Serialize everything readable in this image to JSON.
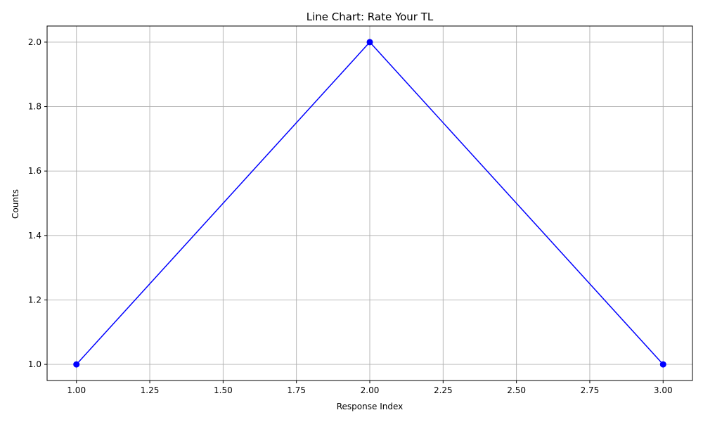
{
  "chart_data": {
    "type": "line",
    "title": "Line Chart: Rate Your TL",
    "xlabel": "Response Index",
    "ylabel": "Counts",
    "x": [
      1,
      2,
      3
    ],
    "series": [
      {
        "values": [
          1,
          2,
          1
        ],
        "color": "#0000ff",
        "marker": "circle"
      }
    ],
    "xlim": [
      0.9,
      3.1
    ],
    "ylim": [
      0.95,
      2.05
    ],
    "xticks": [
      1.0,
      1.25,
      1.5,
      1.75,
      2.0,
      2.25,
      2.5,
      2.75,
      3.0
    ],
    "xtick_labels": [
      "1.00",
      "1.25",
      "1.50",
      "1.75",
      "2.00",
      "2.25",
      "2.50",
      "2.75",
      "3.00"
    ],
    "yticks": [
      1.0,
      1.2,
      1.4,
      1.6,
      1.8,
      2.0
    ],
    "ytick_labels": [
      "1.0",
      "1.2",
      "1.4",
      "1.6",
      "1.8",
      "2.0"
    ],
    "grid": true,
    "grid_color": "#b0b0b0"
  }
}
